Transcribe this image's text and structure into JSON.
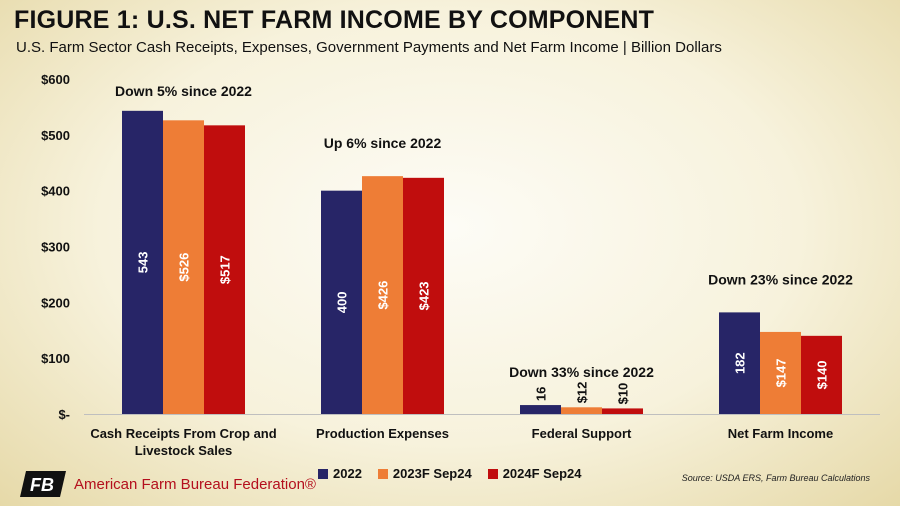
{
  "title": "FIGURE 1: U.S. NET FARM INCOME BY COMPONENT",
  "subtitle": "U.S. Farm Sector Cash Receipts, Expenses, Government Payments and Net Farm Income | Billion Dollars",
  "chart_data": {
    "type": "bar",
    "categories": [
      "Cash Receipts From Crop and Livestock Sales",
      "Production Expenses",
      "Federal Support",
      "Net Farm Income"
    ],
    "series": [
      {
        "name": "2022",
        "values": [
          543,
          400,
          16,
          182
        ],
        "labels": [
          "543",
          "400",
          "16",
          "182"
        ],
        "color": "#272567"
      },
      {
        "name": "2023F Sep24",
        "values": [
          526,
          426,
          12,
          147
        ],
        "labels": [
          "$526",
          "$426",
          "$12",
          "$147"
        ],
        "color": "#ee7d36"
      },
      {
        "name": "2024F Sep24",
        "values": [
          517,
          423,
          10,
          140
        ],
        "labels": [
          "$517",
          "$423",
          "$10",
          "$140"
        ],
        "color": "#c00d0d"
      }
    ],
    "ylim": [
      0,
      600
    ],
    "yticks": [
      0,
      100,
      200,
      300,
      400,
      500,
      600
    ],
    "ytick_labels": [
      "$-",
      "$100",
      "$200",
      "$300",
      "$400",
      "$500",
      "$600"
    ],
    "annotations": [
      "Down 5% since 2022",
      "Up 6% since 2022",
      "Down 33% since 2022",
      "Down 23% since 2022"
    ],
    "grid": false,
    "legend_position": "bottom"
  },
  "source": "Source: USDA ERS, Farm Bureau Calculations",
  "brand": {
    "name": "American Farm Bureau Federation®",
    "logo_text": "FB"
  },
  "colors": {
    "brand_red": "#b40f1d",
    "navy": "#272567",
    "orange": "#ee7d36",
    "red": "#c00d0d"
  }
}
